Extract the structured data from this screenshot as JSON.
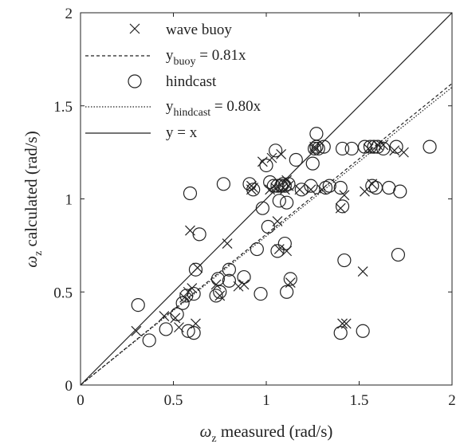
{
  "chart_data": {
    "type": "scatter",
    "xlabel": {
      "symbol": "ω",
      "sub": "z",
      "text": " measured (rad/s)"
    },
    "ylabel": {
      "symbol": "ω",
      "sub": "z",
      "text": " calculated (rad/s)"
    },
    "xlim": [
      0,
      2
    ],
    "ylim": [
      0,
      2
    ],
    "xticks": [
      "0",
      "0.5",
      "1",
      "1.5",
      "2"
    ],
    "yticks": [
      "0",
      "0.5",
      "1",
      "1.5",
      "2"
    ],
    "legend_position": "top-left",
    "grid": false,
    "legend": [
      {
        "marker": "x",
        "label": "wave buoy"
      },
      {
        "line": "dashed",
        "label_main": "y",
        "label_sub": "buoy",
        "label_rest": " = 0.81x"
      },
      {
        "marker": "o",
        "label": "hindcast"
      },
      {
        "line": "dotted",
        "label_main": "y",
        "label_sub": "hindcast",
        "label_rest": " = 0.80x"
      },
      {
        "line": "solid",
        "label": "y = x"
      }
    ],
    "lines": [
      {
        "name": "y_buoy = 0.81x",
        "slope": 0.81,
        "style": "dashed"
      },
      {
        "name": "y_hindcast = 0.80x",
        "slope": 0.8,
        "style": "dotted"
      },
      {
        "name": "y = x",
        "slope": 1.0,
        "style": "solid"
      }
    ],
    "series": [
      {
        "name": "wave buoy",
        "marker": "x",
        "points": [
          [
            0.3,
            0.29
          ],
          [
            0.45,
            0.37
          ],
          [
            0.51,
            0.36
          ],
          [
            0.53,
            0.31
          ],
          [
            0.56,
            0.47
          ],
          [
            0.58,
            0.5
          ],
          [
            0.59,
            0.83
          ],
          [
            0.6,
            0.52
          ],
          [
            0.62,
            0.33
          ],
          [
            0.63,
            0.63
          ],
          [
            0.73,
            0.54
          ],
          [
            0.75,
            0.48
          ],
          [
            0.79,
            0.76
          ],
          [
            0.85,
            0.53
          ],
          [
            0.88,
            0.54
          ],
          [
            0.92,
            1.05
          ],
          [
            0.93,
            1.06
          ],
          [
            0.98,
            1.2
          ],
          [
            1.02,
            1.05
          ],
          [
            1.03,
            1.22
          ],
          [
            1.05,
            1.06
          ],
          [
            1.06,
            0.88
          ],
          [
            1.07,
            0.73
          ],
          [
            1.08,
            1.24
          ],
          [
            1.09,
            1.06
          ],
          [
            1.1,
            1.05
          ],
          [
            1.11,
            0.72
          ],
          [
            1.12,
            1.07
          ],
          [
            1.13,
            0.55
          ],
          [
            1.18,
            1.05
          ],
          [
            1.24,
            1.05
          ],
          [
            1.26,
            1.28
          ],
          [
            1.3,
            1.05
          ],
          [
            1.4,
            0.95
          ],
          [
            1.41,
            0.33
          ],
          [
            1.42,
            1.02
          ],
          [
            1.43,
            0.33
          ],
          [
            1.52,
            0.61
          ],
          [
            1.53,
            1.04
          ],
          [
            1.55,
            1.27
          ],
          [
            1.57,
            1.08
          ],
          [
            1.6,
            1.29
          ],
          [
            1.63,
            1.29
          ],
          [
            1.69,
            1.26
          ],
          [
            1.74,
            1.25
          ],
          [
            1.11,
            1.1
          ],
          [
            1.26,
            1.27
          ],
          [
            0.92,
            1.07
          ]
        ]
      },
      {
        "name": "hindcast",
        "marker": "o",
        "points": [
          [
            0.31,
            0.43
          ],
          [
            0.37,
            0.24
          ],
          [
            0.46,
            0.3
          ],
          [
            0.52,
            0.38
          ],
          [
            0.55,
            0.44
          ],
          [
            0.57,
            0.48
          ],
          [
            0.58,
            0.29
          ],
          [
            0.59,
            1.03
          ],
          [
            0.61,
            0.28
          ],
          [
            0.61,
            0.49
          ],
          [
            0.62,
            0.62
          ],
          [
            0.64,
            0.81
          ],
          [
            0.73,
            0.48
          ],
          [
            0.74,
            0.57
          ],
          [
            0.75,
            0.5
          ],
          [
            0.77,
            1.08
          ],
          [
            0.8,
            0.56
          ],
          [
            0.8,
            0.62
          ],
          [
            0.88,
            0.58
          ],
          [
            0.91,
            1.08
          ],
          [
            0.93,
            1.05
          ],
          [
            0.95,
            0.73
          ],
          [
            0.97,
            0.49
          ],
          [
            0.98,
            0.95
          ],
          [
            1.0,
            1.18
          ],
          [
            1.01,
            0.85
          ],
          [
            1.02,
            1.09
          ],
          [
            1.04,
            1.07
          ],
          [
            1.05,
            1.26
          ],
          [
            1.06,
            1.07
          ],
          [
            1.06,
            0.72
          ],
          [
            1.07,
            0.99
          ],
          [
            1.08,
            1.07
          ],
          [
            1.09,
            1.08
          ],
          [
            1.1,
            0.76
          ],
          [
            1.1,
            1.07
          ],
          [
            1.11,
            0.98
          ],
          [
            1.11,
            0.5
          ],
          [
            1.12,
            1.08
          ],
          [
            1.13,
            0.57
          ],
          [
            1.16,
            1.21
          ],
          [
            1.19,
            1.05
          ],
          [
            1.24,
            1.07
          ],
          [
            1.25,
            1.19
          ],
          [
            1.26,
            1.27
          ],
          [
            1.27,
            1.35
          ],
          [
            1.28,
            1.27
          ],
          [
            1.31,
            1.28
          ],
          [
            1.32,
            1.06
          ],
          [
            1.34,
            1.07
          ],
          [
            1.4,
            1.06
          ],
          [
            1.4,
            0.28
          ],
          [
            1.41,
            0.96
          ],
          [
            1.41,
            1.27
          ],
          [
            1.42,
            0.67
          ],
          [
            1.46,
            1.27
          ],
          [
            1.52,
            0.29
          ],
          [
            1.53,
            1.28
          ],
          [
            1.56,
            1.28
          ],
          [
            1.57,
            1.07
          ],
          [
            1.58,
            1.28
          ],
          [
            1.59,
            1.06
          ],
          [
            1.6,
            1.28
          ],
          [
            1.63,
            1.27
          ],
          [
            1.66,
            1.06
          ],
          [
            1.7,
            1.28
          ],
          [
            1.71,
            0.7
          ],
          [
            1.72,
            1.04
          ],
          [
            1.88,
            1.28
          ],
          [
            1.27,
            1.28
          ]
        ]
      }
    ]
  }
}
